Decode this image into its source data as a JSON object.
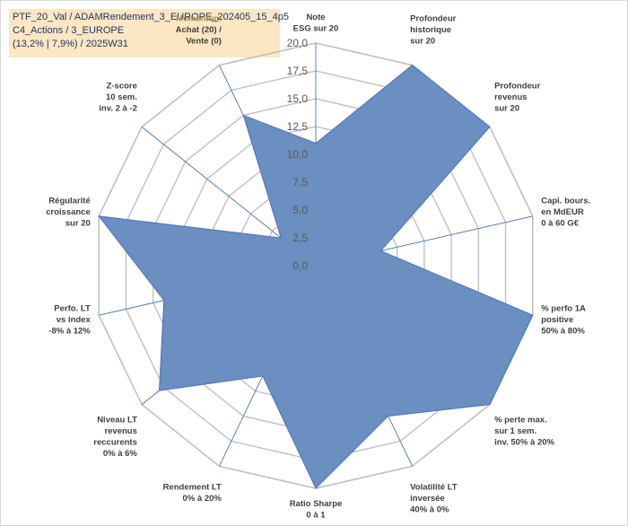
{
  "header": {
    "line1": "PTF_20_Val / ADAMRendement_3_EUROPE_202405_15_4p5",
    "line2": "C4_Actions / 3_EUROPE",
    "line3": "(13,2% | 7,9%) / 2025W31"
  },
  "chart_data": {
    "type": "radar",
    "title": "PTF_20_Val / ADAMRendement_3_EUROPE_202405_15_4p5 C4_Actions / 3_EUROPE (13,2% | 7,9%) / 2025W31",
    "rmin": 0,
    "rmax": 20,
    "tick_labels": [
      "0,0",
      "2,5",
      "5,0",
      "7,5",
      "10,0",
      "12,5",
      "15,0",
      "17,5",
      "20,0"
    ],
    "grid": true,
    "axes": [
      {
        "lines": [
          "Note",
          "ESG sur 20"
        ]
      },
      {
        "lines": [
          "Profondeur",
          "historique",
          "sur 20"
        ]
      },
      {
        "lines": [
          "Profondeur",
          "revenus",
          "sur 20"
        ]
      },
      {
        "lines": [
          "Capi. bours.",
          "en MdEUR",
          "0 à 60 G€"
        ]
      },
      {
        "lines": [
          "% perfo 1A",
          "positive",
          "50% à 80%"
        ]
      },
      {
        "lines": [
          "% perte max.",
          "sur 1 sem.",
          "inv. 50% à 20%"
        ]
      },
      {
        "lines": [
          "Volatilité LT",
          "inversée",
          "40% à 0%"
        ]
      },
      {
        "lines": [
          "Ratio Sharpe",
          "0 à 1"
        ]
      },
      {
        "lines": [
          "Rendement LT",
          "0% à 20%"
        ]
      },
      {
        "lines": [
          "Niveau LT",
          "revenus",
          "reccurents",
          "0% à 6%"
        ]
      },
      {
        "lines": [
          "Perfo. LT",
          "vs index",
          "-8% à 12%"
        ]
      },
      {
        "lines": [
          "Régularité",
          "croissance",
          "sur 20"
        ]
      },
      {
        "lines": [
          "Z-score",
          "10 sem.",
          "inv. 2 à -2"
        ]
      },
      {
        "lines": [
          "Momentum",
          "Achat (20) /",
          "Vente (0)"
        ]
      }
    ],
    "series": [
      {
        "values": [
          11,
          20,
          20,
          6,
          20,
          20,
          15,
          20,
          11,
          18,
          14,
          20,
          4,
          15
        ],
        "fill_color": "#6a8fc0",
        "line_color": "#4a72c4"
      }
    ]
  }
}
